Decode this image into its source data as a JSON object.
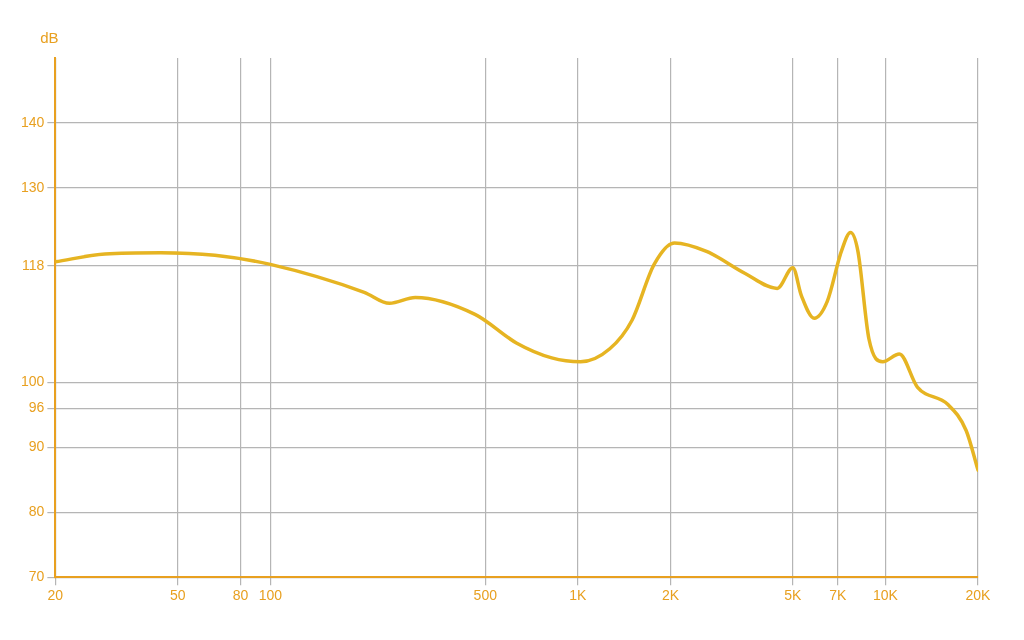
{
  "chart_data": {
    "type": "line",
    "ylabel": "dB",
    "log": "x",
    "grid": true,
    "legend": false,
    "marker": "none",
    "xlim": [
      20,
      20000
    ],
    "xticks": [
      20,
      50,
      80,
      100,
      500,
      {
        "value": 1000,
        "label": "1K"
      },
      {
        "value": 2000,
        "label": "2K"
      },
      {
        "value": 5000,
        "label": "5K"
      },
      {
        "value": 7000,
        "label": "7K"
      },
      {
        "value": 10000,
        "label": "10K"
      },
      {
        "value": 20000,
        "label": "20K"
      }
    ],
    "ylim": [
      70,
      150
    ],
    "yticks": [
      70,
      80,
      90,
      96,
      100,
      118,
      130,
      140
    ],
    "series": [
      {
        "color": "#e6b422",
        "x": [
          20,
          29,
          44,
          66,
          100,
          202,
          244,
          296,
          463,
          631,
          822,
          1020,
          1270,
          1500,
          1770,
          2060,
          2620,
          3500,
          4450,
          5000,
          5330,
          5870,
          6470,
          7190,
          7700,
          8140,
          8840,
          9800,
          11100,
          12700,
          15970,
          18300,
          20000
        ],
        "values": [
          118.6,
          119.8,
          120,
          119.6,
          118.2,
          113.9,
          112.2,
          113.1,
          110.5,
          106.1,
          103.8,
          103.2,
          105.2,
          109.6,
          118.2,
          121.5,
          120.2,
          116.8,
          114.5,
          117.7,
          113.4,
          109.9,
          112.5,
          120.2,
          123.1,
          120.2,
          106.7,
          103.2,
          104.4,
          99.3,
          96.6,
          92.6,
          86.5
        ]
      }
    ]
  }
}
